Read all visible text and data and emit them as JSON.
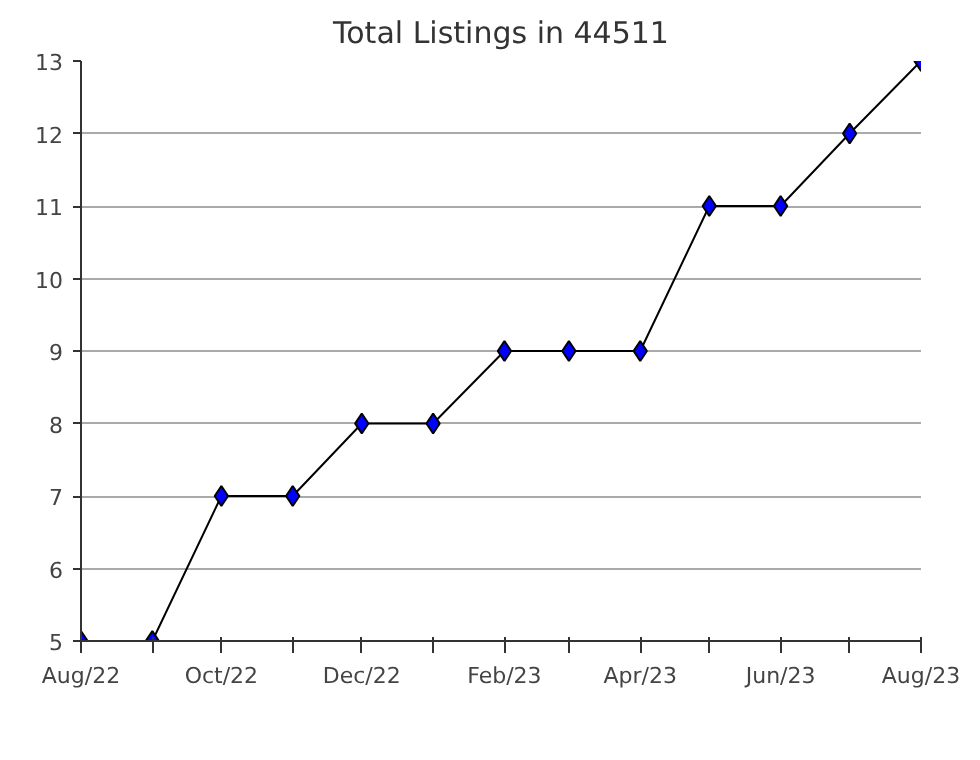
{
  "chart_data": {
    "type": "line",
    "title": "Total Listings in 44511",
    "x": [
      "2022-08",
      "2022-09",
      "2022-10",
      "2022-11",
      "2022-12",
      "2023-01",
      "2023-02",
      "2023-03",
      "2023-04",
      "2023-05",
      "2023-06",
      "2023-07",
      "2023-08"
    ],
    "series": [
      {
        "color": "#0000ff",
        "values": [
          5,
          5,
          7,
          7,
          8,
          8,
          9,
          9,
          9,
          11,
          11,
          12,
          13
        ]
      }
    ],
    "xlim": [
      "2022-08",
      "2023-08"
    ],
    "xticks": [
      {
        "value": "2022-08",
        "label": "Aug/22"
      },
      {
        "value": "2022-09",
        "label": null
      },
      {
        "value": "2022-10",
        "label": "Oct/22"
      },
      {
        "value": "2022-11",
        "label": null
      },
      {
        "value": "2022-12",
        "label": "Dec/22"
      },
      {
        "value": "2023-01",
        "label": null
      },
      {
        "value": "2023-02",
        "label": "Feb/23"
      },
      {
        "value": "2023-03",
        "label": null
      },
      {
        "value": "2023-04",
        "label": "Apr/23"
      },
      {
        "value": "2023-05",
        "label": null
      },
      {
        "value": "2023-06",
        "label": "Jun/23"
      },
      {
        "value": "2023-07",
        "label": null
      },
      {
        "value": "2023-08",
        "label": "Aug/23"
      }
    ],
    "ylim": [
      5,
      13
    ],
    "yticks": [
      5,
      6,
      7,
      8,
      9,
      10,
      11,
      12,
      13
    ],
    "grid": "y",
    "marker": "diamond",
    "line_style": "solid"
  }
}
